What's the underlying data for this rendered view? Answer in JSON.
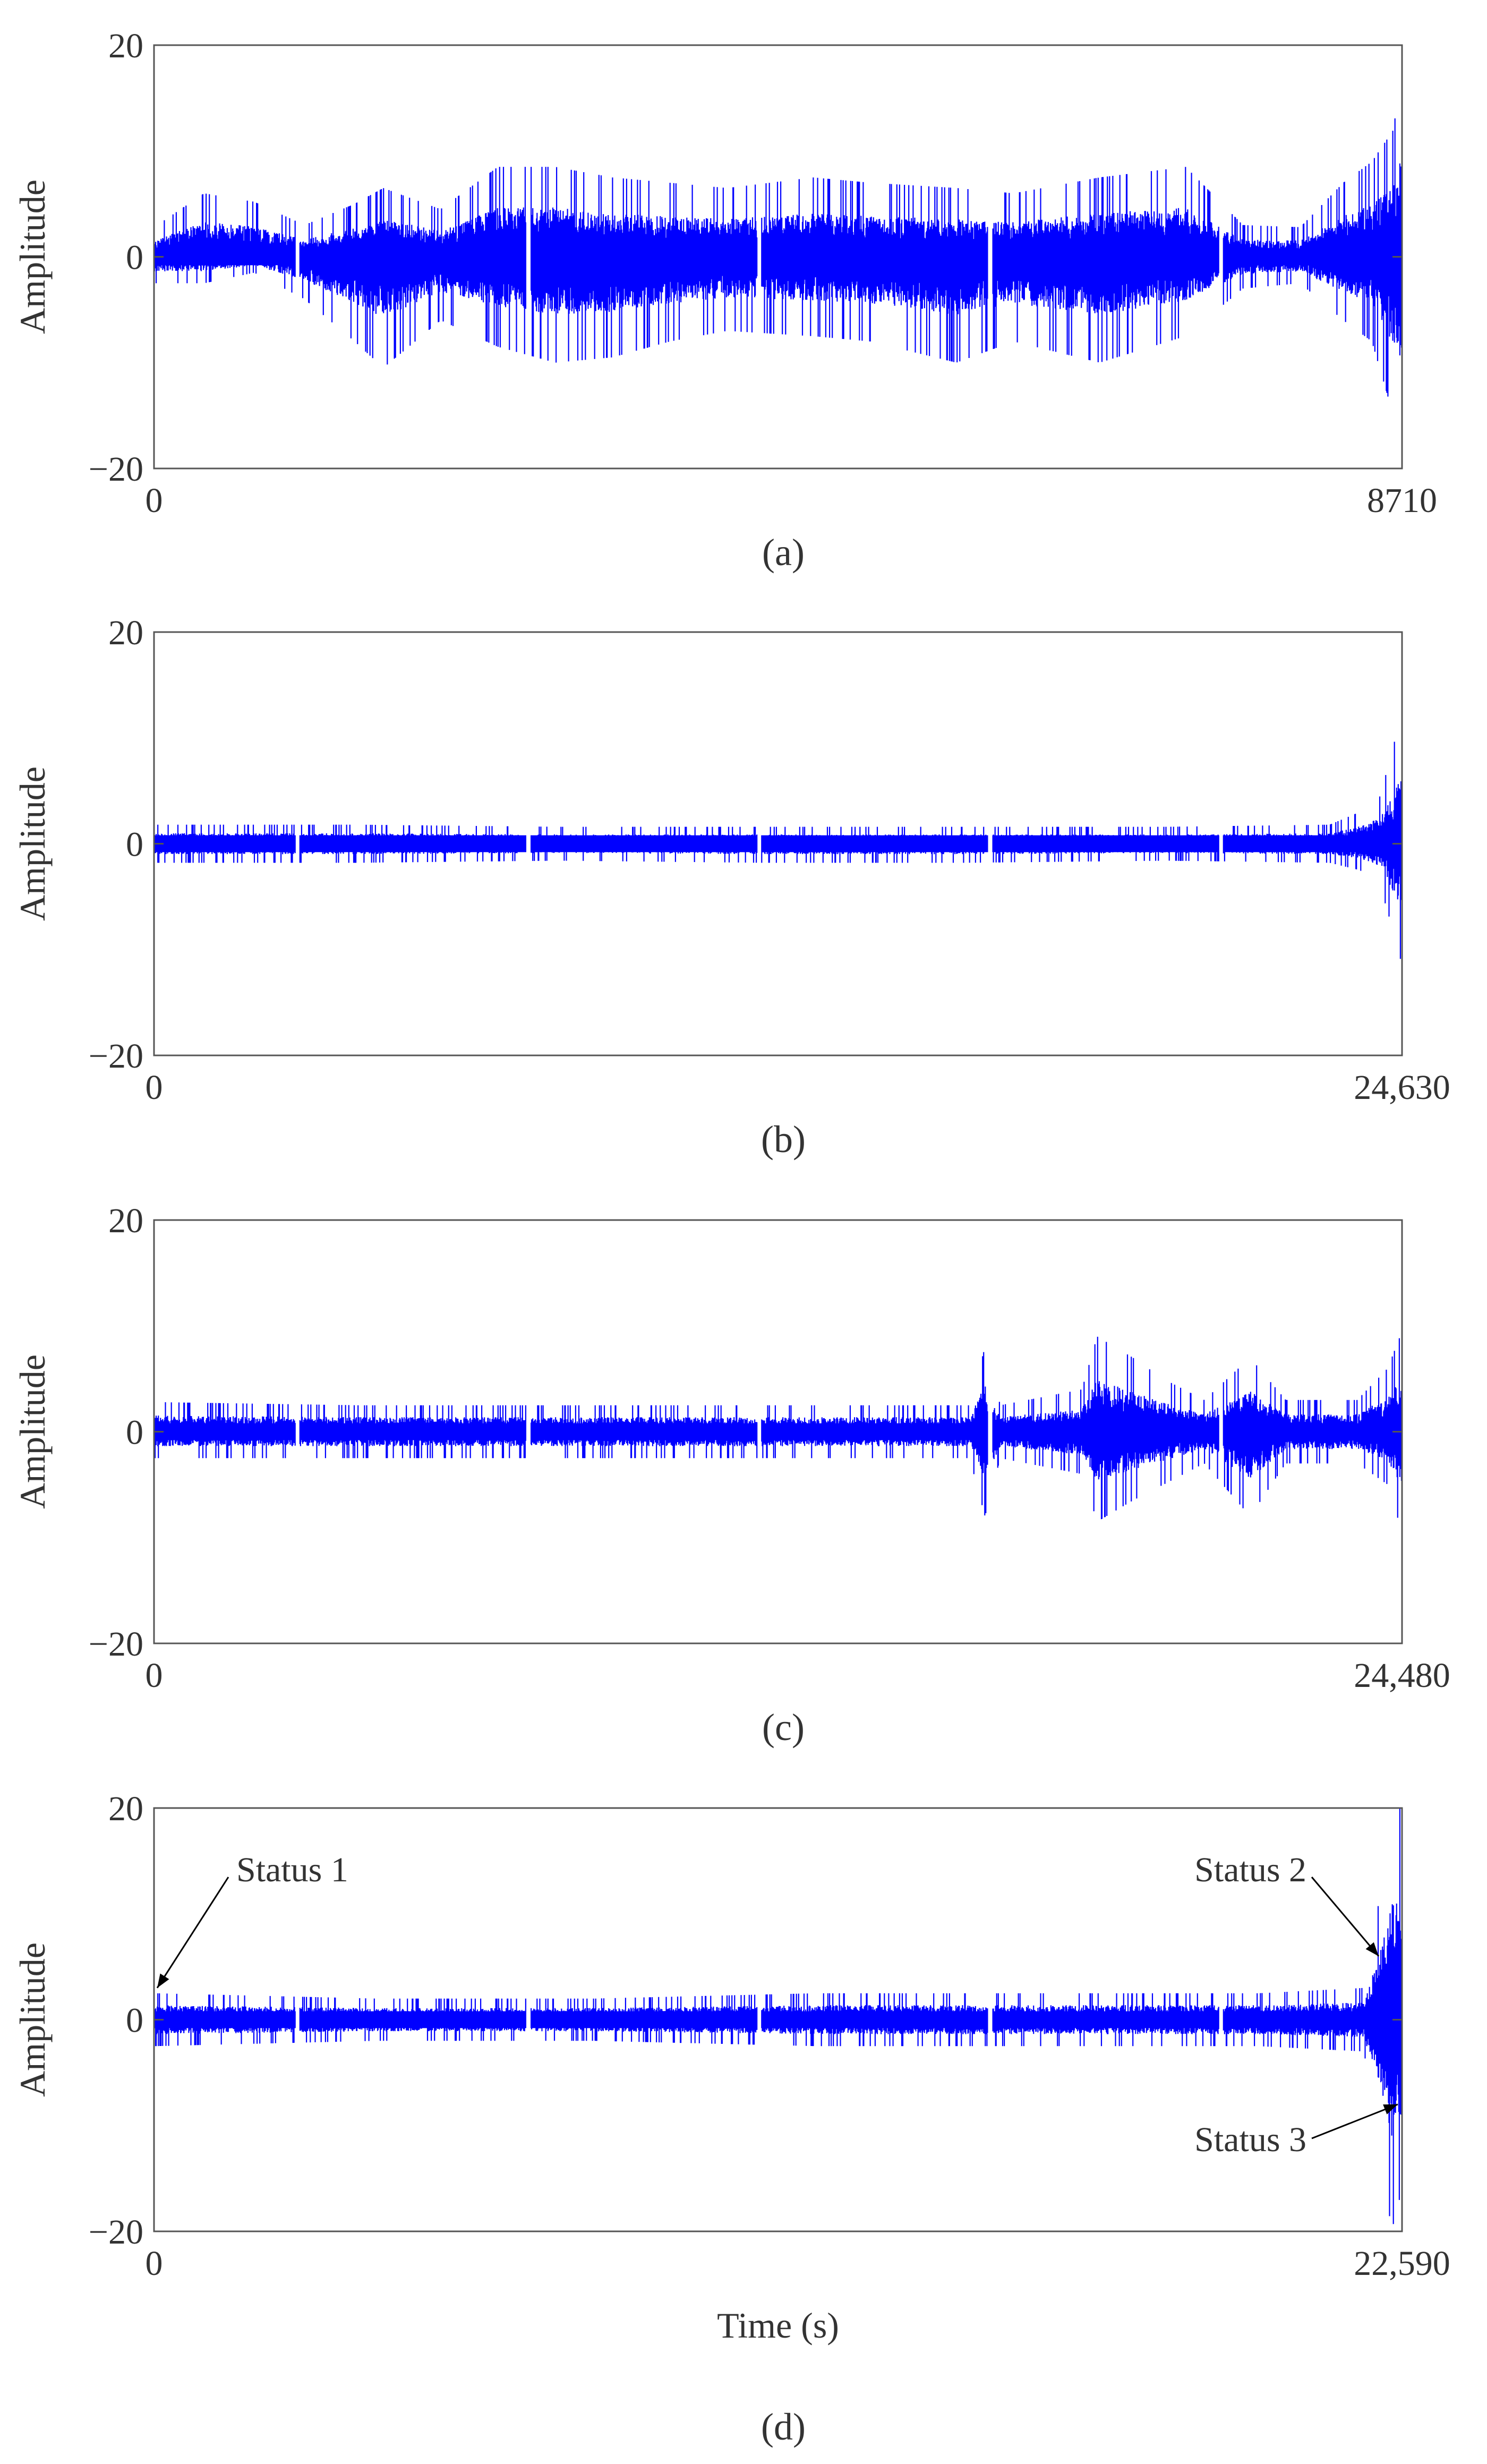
{
  "colors": {
    "signal": "#0000ff",
    "axis": "#555555",
    "text": "#333333"
  },
  "chart_data": [
    {
      "type": "line",
      "panel_label": "(a)",
      "ylabel": "Amplitude",
      "xlabel": "",
      "xlim": [
        0,
        8710
      ],
      "ylim": [
        -20,
        20
      ],
      "x_tick_labels": [
        "0",
        "8710"
      ],
      "y_tick_labels": [
        "20",
        "0",
        "−20"
      ],
      "grid": false,
      "series": [
        {
          "values": [
            {
              "x": 0,
              "min": -2.5,
              "max": 2.8
            },
            {
              "x": 350,
              "min": -2.5,
              "max": 6.0
            },
            {
              "x": 700,
              "min": -1.5,
              "max": 5.2
            },
            {
              "x": 1050,
              "min": -4.0,
              "max": 3.0
            },
            {
              "x": 1400,
              "min": -8.0,
              "max": 5.0
            },
            {
              "x": 1600,
              "min": -10.5,
              "max": 6.5
            },
            {
              "x": 2000,
              "min": -6.0,
              "max": 4.5
            },
            {
              "x": 2400,
              "min": -8.5,
              "max": 8.5
            },
            {
              "x": 2800,
              "min": -10.0,
              "max": 8.5
            },
            {
              "x": 3200,
              "min": -9.5,
              "max": 7.5
            },
            {
              "x": 3600,
              "min": -8.0,
              "max": 7.0
            },
            {
              "x": 4000,
              "min": -7.0,
              "max": 6.5
            },
            {
              "x": 4600,
              "min": -7.5,
              "max": 7.5
            },
            {
              "x": 5000,
              "min": -8.0,
              "max": 7.0
            },
            {
              "x": 5600,
              "min": -10.0,
              "max": 6.5
            },
            {
              "x": 6000,
              "min": -8.0,
              "max": 6.0
            },
            {
              "x": 6600,
              "min": -10.0,
              "max": 7.5
            },
            {
              "x": 7200,
              "min": -7.5,
              "max": 8.5
            },
            {
              "x": 7600,
              "min": -3.0,
              "max": 3.0
            },
            {
              "x": 8000,
              "min": -2.5,
              "max": 2.8
            },
            {
              "x": 8300,
              "min": -6.0,
              "max": 7.0
            },
            {
              "x": 8500,
              "min": -8.0,
              "max": 9.0
            },
            {
              "x": 8650,
              "min": -15.0,
              "max": 12.0
            },
            {
              "x": 8710,
              "min": -18.0,
              "max": 18.0
            }
          ]
        }
      ]
    },
    {
      "type": "line",
      "panel_label": "(b)",
      "ylabel": "Amplitude",
      "xlabel": "",
      "xlim": [
        0,
        24630
      ],
      "ylim": [
        -20,
        20
      ],
      "x_tick_labels": [
        "0",
        "24,630"
      ],
      "y_tick_labels": [
        "20",
        "0",
        "−20"
      ],
      "grid": false,
      "series": [
        {
          "values": [
            {
              "x": 0,
              "min": -1.8,
              "max": 1.8
            },
            {
              "x": 4000,
              "min": -1.8,
              "max": 1.8
            },
            {
              "x": 8000,
              "min": -1.6,
              "max": 1.6
            },
            {
              "x": 12000,
              "min": -1.8,
              "max": 1.6
            },
            {
              "x": 16000,
              "min": -1.8,
              "max": 1.6
            },
            {
              "x": 20000,
              "min": -1.6,
              "max": 1.6
            },
            {
              "x": 23200,
              "min": -1.8,
              "max": 1.8
            },
            {
              "x": 23800,
              "min": -2.5,
              "max": 3.0
            },
            {
              "x": 24200,
              "min": -4.0,
              "max": 4.5
            },
            {
              "x": 24500,
              "min": -9.0,
              "max": 10.0
            },
            {
              "x": 24630,
              "min": -11.5,
              "max": 14.0
            }
          ]
        }
      ]
    },
    {
      "type": "line",
      "panel_label": "(c)",
      "ylabel": "Amplitude",
      "xlabel": "",
      "xlim": [
        0,
        24480
      ],
      "ylim": [
        -20,
        20
      ],
      "x_tick_labels": [
        "0",
        "24,480"
      ],
      "y_tick_labels": [
        "20",
        "0",
        "−20"
      ],
      "grid": false,
      "series": [
        {
          "values": [
            {
              "x": 0,
              "min": -2.5,
              "max": 2.8
            },
            {
              "x": 4000,
              "min": -2.5,
              "max": 2.5
            },
            {
              "x": 8000,
              "min": -2.5,
              "max": 2.5
            },
            {
              "x": 12000,
              "min": -2.5,
              "max": 2.5
            },
            {
              "x": 16000,
              "min": -2.5,
              "max": 2.5
            },
            {
              "x": 16300,
              "min": -8.0,
              "max": 8.0
            },
            {
              "x": 16600,
              "min": -2.5,
              "max": 2.5
            },
            {
              "x": 18200,
              "min": -4.0,
              "max": 4.0
            },
            {
              "x": 18500,
              "min": -8.5,
              "max": 9.0
            },
            {
              "x": 19200,
              "min": -6.5,
              "max": 7.0
            },
            {
              "x": 19800,
              "min": -5.0,
              "max": 5.0
            },
            {
              "x": 20600,
              "min": -3.0,
              "max": 3.0
            },
            {
              "x": 21500,
              "min": -8.0,
              "max": 7.0
            },
            {
              "x": 22200,
              "min": -3.0,
              "max": 3.0
            },
            {
              "x": 23600,
              "min": -3.0,
              "max": 3.0
            },
            {
              "x": 24200,
              "min": -5.0,
              "max": 6.0
            },
            {
              "x": 24480,
              "min": -9.5,
              "max": 9.5
            }
          ]
        }
      ]
    },
    {
      "type": "line",
      "panel_label": "(d)",
      "ylabel": "Amplitude",
      "xlabel": "Time (s)",
      "xlim": [
        0,
        22590
      ],
      "ylim": [
        -20,
        20
      ],
      "x_tick_labels": [
        "0",
        "22,590"
      ],
      "y_tick_labels": [
        "20",
        "0",
        "−20"
      ],
      "grid": false,
      "annotations": [
        {
          "text": "Status 1",
          "x": 0,
          "y": 3
        },
        {
          "text": "Status 2",
          "x": 22300,
          "y": 6
        },
        {
          "text": "Status 3",
          "x": 22400,
          "y": -8
        }
      ],
      "series": [
        {
          "values": [
            {
              "x": 0,
              "min": -2.5,
              "max": 2.5
            },
            {
              "x": 4000,
              "min": -2.0,
              "max": 2.0
            },
            {
              "x": 8000,
              "min": -2.0,
              "max": 2.0
            },
            {
              "x": 12000,
              "min": -2.5,
              "max": 2.5
            },
            {
              "x": 16000,
              "min": -2.5,
              "max": 2.5
            },
            {
              "x": 20000,
              "min": -2.5,
              "max": 2.5
            },
            {
              "x": 21900,
              "min": -3.0,
              "max": 3.0
            },
            {
              "x": 22200,
              "min": -12.0,
              "max": 12.0
            },
            {
              "x": 22400,
              "min": -20.0,
              "max": 20.0
            },
            {
              "x": 22590,
              "min": -16.0,
              "max": 20.0
            }
          ]
        }
      ]
    }
  ]
}
